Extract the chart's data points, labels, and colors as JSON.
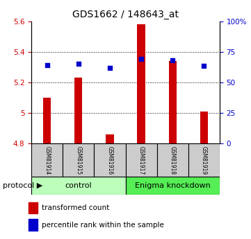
{
  "title": "GDS1662 / 148643_at",
  "samples": [
    "GSM81914",
    "GSM81915",
    "GSM81916",
    "GSM81917",
    "GSM81918",
    "GSM81919"
  ],
  "red_values": [
    5.1,
    5.23,
    4.86,
    5.58,
    5.34,
    5.01
  ],
  "blue_values": [
    5.315,
    5.325,
    5.295,
    5.355,
    5.345,
    5.31
  ],
  "ylim_left": [
    4.8,
    5.6
  ],
  "ylim_right": [
    0,
    100
  ],
  "yticks_left": [
    4.8,
    5.0,
    5.2,
    5.4,
    5.6
  ],
  "yticks_right": [
    0,
    25,
    50,
    75,
    100
  ],
  "ytick_labels_left": [
    "4.8",
    "5",
    "5.2",
    "5.4",
    "5.6"
  ],
  "ytick_labels_right": [
    "0",
    "25",
    "50",
    "75",
    "100%"
  ],
  "bar_bottom": 4.8,
  "bar_color": "#cc0000",
  "dot_color": "#0000cc",
  "control_label": "control",
  "knockdown_label": "Enigma knockdown",
  "protocol_label": "protocol",
  "legend_red": "transformed count",
  "legend_blue": "percentile rank within the sample",
  "control_color": "#bbffbb",
  "knockdown_color": "#55ee55",
  "sample_box_color": "#cccccc",
  "title_fontsize": 10,
  "tick_fontsize": 7.5,
  "legend_fontsize": 7.5,
  "sample_fontsize": 5.5,
  "proto_fontsize": 8
}
